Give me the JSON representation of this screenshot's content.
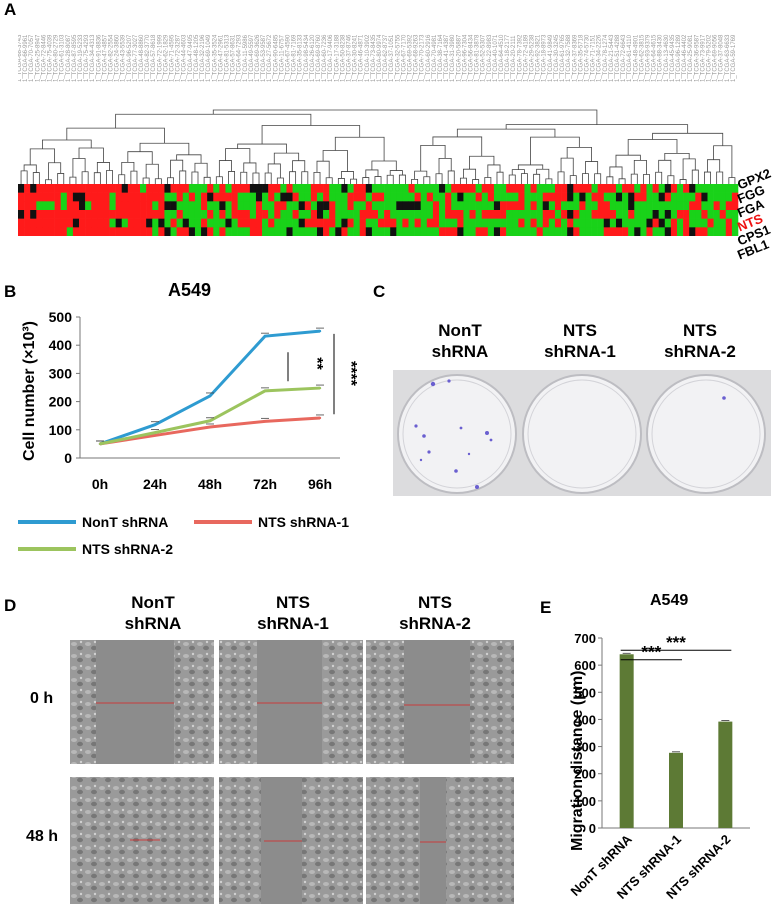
{
  "panels": {
    "a": {
      "label": "A"
    },
    "b": {
      "label": "B"
    },
    "c": {
      "label": "C"
    },
    "d": {
      "label": "D"
    },
    "e": {
      "label": "E"
    }
  },
  "heatmap": {
    "genes": [
      "GPX2",
      "FGG",
      "FGA",
      "NTS",
      "CPS1",
      "FBL1"
    ],
    "highlight_gene": "NTS",
    "highlight_color": "#ee1111",
    "colors": {
      "high": "#ff1a1a",
      "low": "#19d219",
      "mid": "#111111"
    }
  },
  "chart_b": {
    "title": "A549",
    "ylabel": "Cell number (×10³)",
    "significance": [
      "**",
      "****"
    ],
    "legend": [
      "NonT shRNA",
      "NTS shRNA-1",
      "NTS shRNA-2"
    ]
  },
  "chart_data": [
    {
      "type": "line",
      "title": "A549",
      "ylabel": "Cell number (×10³)",
      "xlabel": "",
      "categories": [
        "0h",
        "24h",
        "48h",
        "72h",
        "96h"
      ],
      "ylim": [
        0,
        500
      ],
      "yticks": [
        0,
        100,
        200,
        300,
        400,
        500
      ],
      "series": [
        {
          "name": "NonT shRNA",
          "color": "#2e9bd1",
          "values": [
            50,
            118,
            220,
            432,
            450
          ]
        },
        {
          "name": "NTS shRNA-1",
          "color": "#e8685e",
          "values": [
            50,
            80,
            110,
            130,
            142
          ]
        },
        {
          "name": "NTS shRNA-2",
          "color": "#9cc45e",
          "values": [
            50,
            90,
            132,
            238,
            248
          ]
        }
      ],
      "annotations": [
        "**",
        "****"
      ]
    },
    {
      "type": "bar",
      "title": "A549",
      "ylabel": "Migration distance (μm)",
      "xlabel": "",
      "categories": [
        "NonT shRNA",
        "NTS shRNA-1",
        "NTS shRNA-2"
      ],
      "values": [
        640,
        277,
        392
      ],
      "ylim": [
        0,
        700
      ],
      "yticks": [
        0,
        100,
        200,
        300,
        400,
        500,
        600,
        700
      ],
      "color": "#5d7a35",
      "annotations": [
        "***",
        "***"
      ]
    }
  ],
  "panel_c": {
    "headers": [
      {
        "line1": "NonT",
        "line2": "shRNA"
      },
      {
        "line1": "NTS",
        "line2": "shRNA-1"
      },
      {
        "line1": "NTS",
        "line2": "shRNA-2"
      }
    ]
  },
  "panel_d": {
    "headers": [
      {
        "line1": "NonT",
        "line2": "shRNA"
      },
      {
        "line1": "NTS",
        "line2": "shRNA-1"
      },
      {
        "line1": "NTS",
        "line2": "shRNA-2"
      }
    ],
    "rows": [
      "0 h",
      "48 h"
    ]
  },
  "chart_e": {
    "title": "A549",
    "ylabel": "Migration distance (μm)",
    "significance": [
      "***",
      "***"
    ]
  }
}
